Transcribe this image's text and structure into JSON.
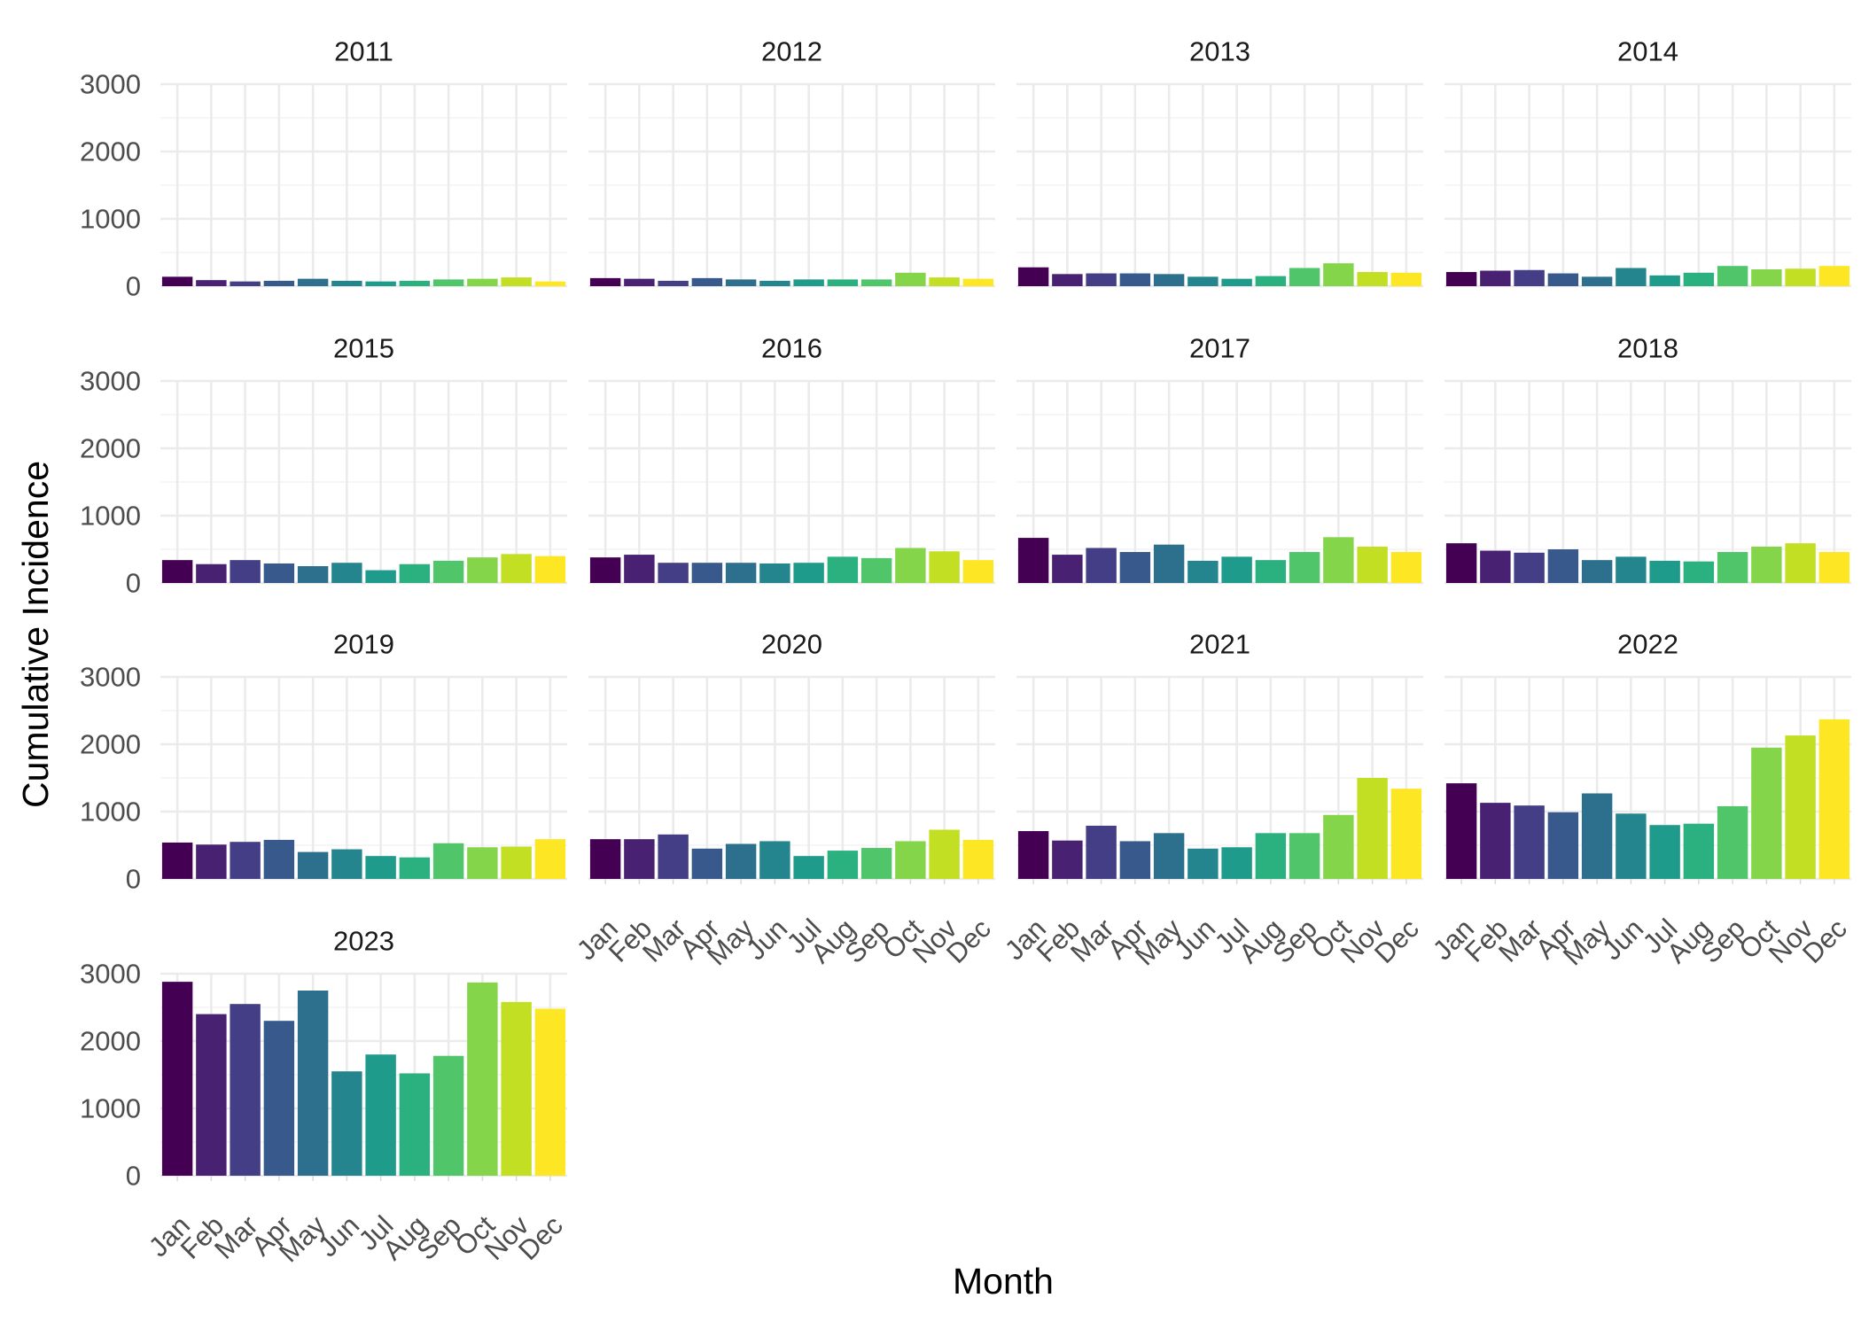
{
  "chart_data": {
    "type": "bar",
    "layout": "faceted",
    "xlabel": "Month",
    "ylabel": "Cumulative Incidence",
    "ylim": [
      0,
      3000
    ],
    "yticks": [
      0,
      1000,
      2000,
      3000
    ],
    "categories": [
      "Jan",
      "Feb",
      "Mar",
      "Apr",
      "May",
      "Jun",
      "Jul",
      "Aug",
      "Sep",
      "Oct",
      "Nov",
      "Dec"
    ],
    "colors": [
      "#440154",
      "#482173",
      "#433E85",
      "#38598C",
      "#2D708E",
      "#25858E",
      "#1E9B8A",
      "#2BB07F",
      "#51C56A",
      "#85D54A",
      "#C2DF23",
      "#FDE725"
    ],
    "legend": "none",
    "grid": true,
    "panels": [
      {
        "title": "2011",
        "values": [
          140,
          90,
          70,
          80,
          110,
          80,
          70,
          80,
          100,
          110,
          130,
          70
        ]
      },
      {
        "title": "2012",
        "values": [
          120,
          110,
          80,
          120,
          100,
          80,
          100,
          100,
          100,
          200,
          130,
          110
        ]
      },
      {
        "title": "2013",
        "values": [
          280,
          180,
          190,
          190,
          180,
          140,
          110,
          150,
          270,
          340,
          210,
          200
        ]
      },
      {
        "title": "2014",
        "values": [
          210,
          230,
          240,
          190,
          140,
          270,
          160,
          200,
          300,
          250,
          260,
          300
        ]
      },
      {
        "title": "2015",
        "values": [
          340,
          280,
          340,
          290,
          250,
          300,
          190,
          280,
          330,
          380,
          430,
          400
        ]
      },
      {
        "title": "2016",
        "values": [
          380,
          420,
          300,
          300,
          300,
          290,
          300,
          390,
          370,
          520,
          470,
          340
        ]
      },
      {
        "title": "2017",
        "values": [
          670,
          420,
          520,
          460,
          570,
          330,
          390,
          340,
          460,
          680,
          540,
          460
        ]
      },
      {
        "title": "2018",
        "values": [
          590,
          480,
          450,
          500,
          340,
          390,
          330,
          320,
          460,
          540,
          590,
          460
        ]
      },
      {
        "title": "2019",
        "values": [
          540,
          510,
          550,
          580,
          400,
          440,
          340,
          320,
          530,
          470,
          480,
          590
        ]
      },
      {
        "title": "2020",
        "values": [
          590,
          590,
          660,
          450,
          520,
          560,
          340,
          420,
          460,
          560,
          730,
          580
        ]
      },
      {
        "title": "2021",
        "values": [
          710,
          570,
          790,
          560,
          680,
          450,
          470,
          680,
          680,
          950,
          1500,
          1340
        ]
      },
      {
        "title": "2022",
        "values": [
          1420,
          1130,
          1090,
          990,
          1270,
          970,
          800,
          820,
          1080,
          1950,
          2130,
          2370
        ]
      },
      {
        "title": "2023",
        "values": [
          2880,
          2400,
          2550,
          2300,
          2750,
          1550,
          1800,
          1520,
          1780,
          2870,
          2580,
          2480
        ]
      }
    ]
  }
}
